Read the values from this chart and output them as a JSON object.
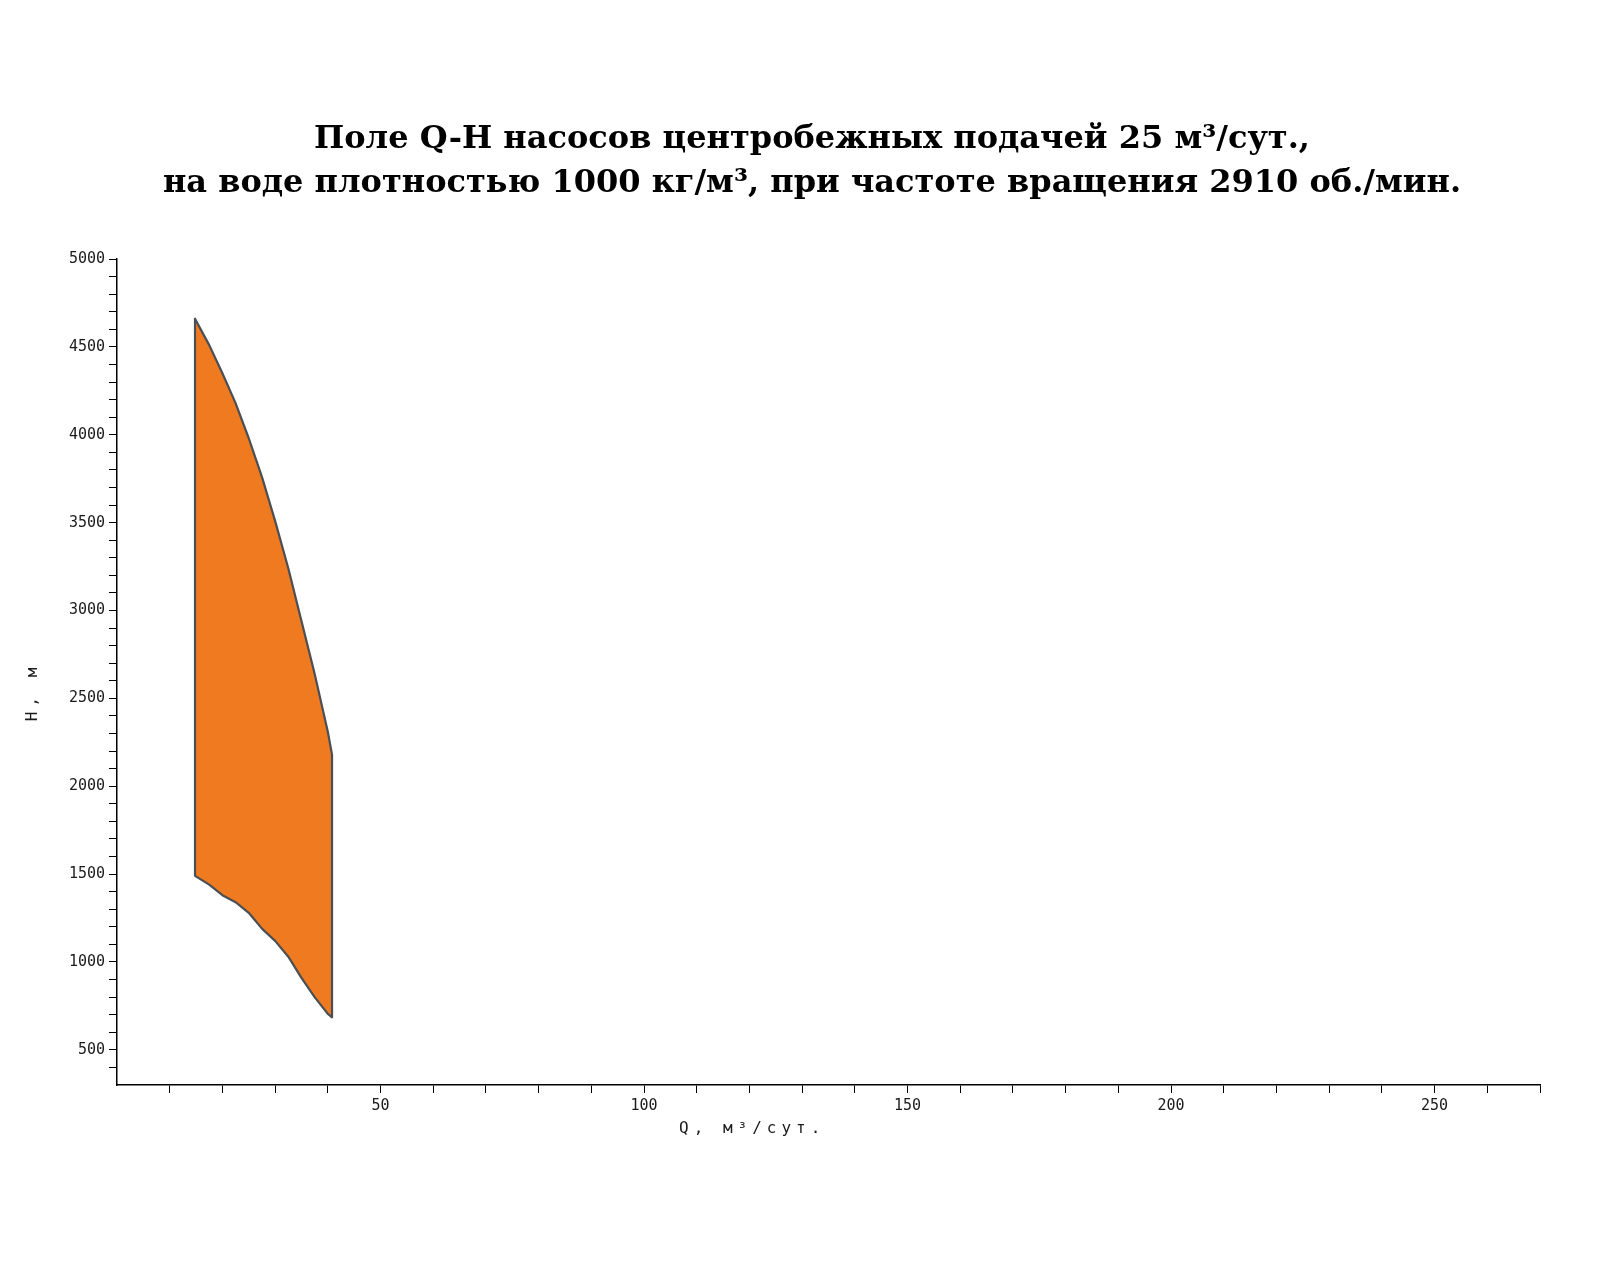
{
  "chart_data": {
    "type": "area",
    "title": "Поле Q-H насосов центробежных подачей 25 м³/сут.,\nна воде плотностью 1000 кг/м³, при частоте вращения 2910 об./мин.",
    "xlabel": "Q, м³/сут.",
    "ylabel": "H, м",
    "x": [
      14.8,
      17.5,
      20,
      22.5,
      25,
      27.5,
      30,
      32.5,
      35,
      37.5,
      40,
      40.8
    ],
    "series": [
      {
        "color": "#f07a20",
        "values": [
          null,
          null,
          null,
          null,
          null,
          null,
          null,
          null,
          null,
          null,
          null,
          null
        ],
        "upper": [
          4660,
          4510,
          4350,
          4180,
          3980,
          3760,
          3510,
          3240,
          2940,
          2640,
          2310,
          2180
        ],
        "lower": [
          1490,
          1440,
          1380,
          1340,
          1280,
          1190,
          1120,
          1030,
          910,
          800,
          705,
          685
        ]
      }
    ],
    "xlim": [
      0,
      270
    ],
    "xticks": [
      {
        "value": 10,
        "label": null
      },
      {
        "value": 20,
        "label": null
      },
      {
        "value": 30,
        "label": null
      },
      {
        "value": 40,
        "label": null
      },
      50,
      {
        "value": 60,
        "label": null
      },
      {
        "value": 70,
        "label": null
      },
      {
        "value": 80,
        "label": null
      },
      {
        "value": 90,
        "label": null
      },
      100,
      {
        "value": 110,
        "label": null
      },
      {
        "value": 120,
        "label": null
      },
      {
        "value": 130,
        "label": null
      },
      {
        "value": 140,
        "label": null
      },
      150,
      {
        "value": 160,
        "label": null
      },
      {
        "value": 170,
        "label": null
      },
      {
        "value": 180,
        "label": null
      },
      {
        "value": 190,
        "label": null
      },
      200,
      {
        "value": 210,
        "label": null
      },
      {
        "value": 220,
        "label": null
      },
      {
        "value": 230,
        "label": null
      },
      {
        "value": 240,
        "label": null
      },
      250,
      {
        "value": 260,
        "label": null
      },
      {
        "value": 270,
        "label": null
      }
    ],
    "ylim": [
      300,
      5000
    ],
    "yticks": [
      {
        "value": 400,
        "label": null
      },
      500,
      {
        "value": 600,
        "label": null
      },
      {
        "value": 700,
        "label": null
      },
      {
        "value": 800,
        "label": null
      },
      {
        "value": 900,
        "label": null
      },
      1000,
      {
        "value": 1100,
        "label": null
      },
      {
        "value": 1200,
        "label": null
      },
      {
        "value": 1300,
        "label": null
      },
      {
        "value": 1400,
        "label": null
      },
      1500,
      {
        "value": 1600,
        "label": null
      },
      {
        "value": 1700,
        "label": null
      },
      {
        "value": 1800,
        "label": null
      },
      {
        "value": 1900,
        "label": null
      },
      2000,
      {
        "value": 2100,
        "label": null
      },
      {
        "value": 2200,
        "label": null
      },
      {
        "value": 2300,
        "label": null
      },
      {
        "value": 2400,
        "label": null
      },
      2500,
      {
        "value": 2600,
        "label": null
      },
      {
        "value": 2700,
        "label": null
      },
      {
        "value": 2800,
        "label": null
      },
      {
        "value": 2900,
        "label": null
      },
      3000,
      {
        "value": 3100,
        "label": null
      },
      {
        "value": 3200,
        "label": null
      },
      {
        "value": 3300,
        "label": null
      },
      {
        "value": 3400,
        "label": null
      },
      3500,
      {
        "value": 3600,
        "label": null
      },
      {
        "value": 3700,
        "label": null
      },
      {
        "value": 3800,
        "label": null
      },
      {
        "value": 3900,
        "label": null
      },
      4000,
      {
        "value": 4100,
        "label": null
      },
      {
        "value": 4200,
        "label": null
      },
      {
        "value": 4300,
        "label": null
      },
      {
        "value": 4400,
        "label": null
      },
      4500,
      {
        "value": 4600,
        "label": null
      },
      {
        "value": 4700,
        "label": null
      },
      {
        "value": 4800,
        "label": null
      },
      {
        "value": 4900,
        "label": null
      },
      5000
    ],
    "grid": false
  }
}
